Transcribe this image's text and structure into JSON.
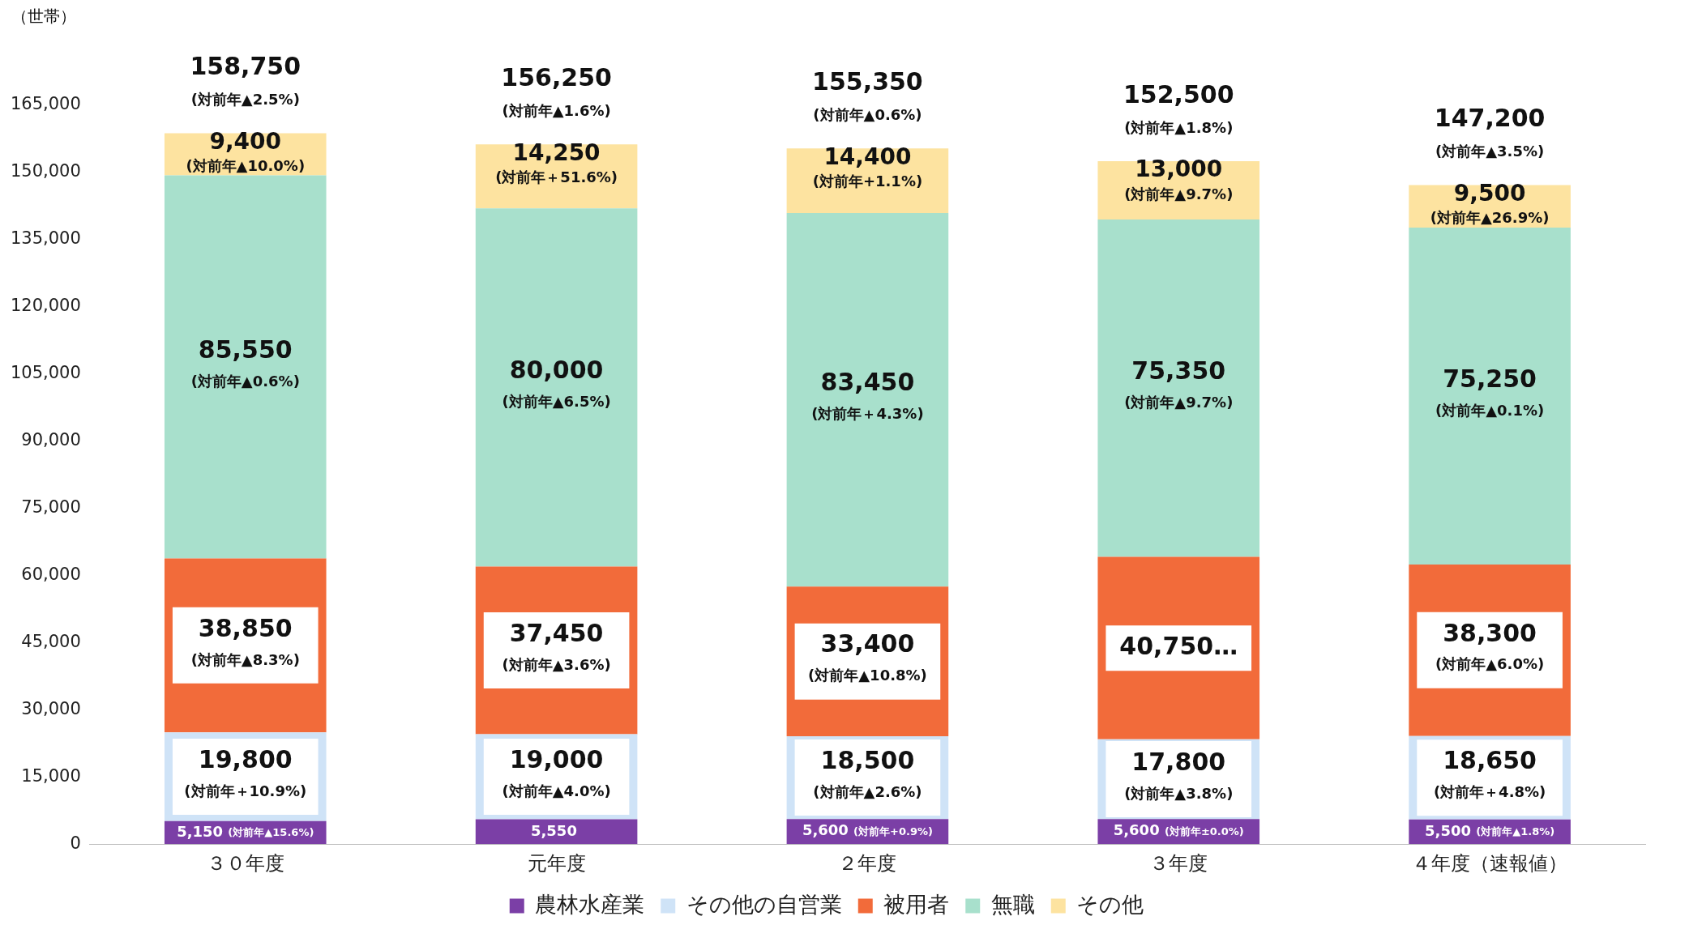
{
  "chart_data": {
    "type": "bar",
    "stacked": true,
    "ylabel": "（世帯）",
    "categories": [
      "３０年度",
      "元年度",
      "２年度",
      "３年度",
      "４年度（速報値）"
    ],
    "ylim": [
      0,
      165000
    ],
    "yticks": [
      {
        "value": 0,
        "label": "0"
      },
      {
        "value": 15000,
        "label": "15,000"
      },
      {
        "value": 30000,
        "label": "30,000"
      },
      {
        "value": 45000,
        "label": "45,000"
      },
      {
        "value": 60000,
        "label": "60,000"
      },
      {
        "value": 75000,
        "label": "75,000"
      },
      {
        "value": 90000,
        "label": "90,000"
      },
      {
        "value": 105000,
        "label": "105,000"
      },
      {
        "value": 120000,
        "label": "120,000"
      },
      {
        "value": 135000,
        "label": "135,000"
      },
      {
        "value": 150000,
        "label": "150,000"
      },
      {
        "value": 165000,
        "label": "165,000"
      }
    ],
    "grid": false,
    "legend": "bottom",
    "series": [
      {
        "name": "農林水産業",
        "color": "#7b3fa6",
        "values": [
          5150,
          5550,
          5600,
          5600,
          5500
        ],
        "value_labels": [
          "5,150\n(対前年▲15.6%)",
          "5,550",
          "5,600\n(対前年+0.9%)",
          "5,600\n(対前年±0.0%)",
          "5,500\n(対前年▲1.8%)"
        ]
      },
      {
        "name": "その他の自営業",
        "color": "#cfe3f7",
        "values": [
          19800,
          19000,
          18500,
          17800,
          18650
        ],
        "value_labels": [
          "19,800\n(対前年＋10.9%)",
          "19,000\n(対前年▲4.0%)",
          "18,500\n(対前年▲2.6%)",
          "17,800\n(対前年▲3.8%)",
          "18,650\n(対前年＋4.8%)"
        ]
      },
      {
        "name": "被用者",
        "color": "#f26b3a",
        "values": [
          38850,
          37450,
          33400,
          40750,
          38300
        ],
        "value_labels": [
          "38,850\n(対前年▲8.3%)",
          "37,450\n(対前年▲3.6%)",
          "33,400\n(対前年▲10.8%)",
          "40,750…",
          "38,300\n(対前年▲6.0%)"
        ]
      },
      {
        "name": "無職",
        "color": "#a8e0cc",
        "values": [
          85550,
          80000,
          83450,
          75350,
          75250
        ],
        "value_labels": [
          "85,550\n(対前年▲0.6%)",
          "80,000\n(対前年▲6.5%)",
          "83,450\n(対前年＋4.3%)",
          "75,350\n(対前年▲9.7%)",
          "75,250\n(対前年▲0.1%)"
        ]
      },
      {
        "name": "その他",
        "color": "#fde3a0",
        "values": [
          9400,
          14250,
          14400,
          13000,
          9500
        ],
        "value_labels": [
          "9,400\n(対前年▲10.0%)",
          "14,250\n(対前年＋51.6%)",
          "14,400\n(対前年+1.1%)",
          "13,000\n(対前年▲9.7%)",
          "9,500\n(対前年▲26.9%)"
        ]
      }
    ],
    "totals": [
      "158,750\n(対前年▲2.5%)",
      "156,250\n(対前年▲1.6%)",
      "155,350\n(対前年▲0.6%)",
      "152,500\n(対前年▲1.8%)",
      "147,200\n(対前年▲3.5%)"
    ]
  }
}
